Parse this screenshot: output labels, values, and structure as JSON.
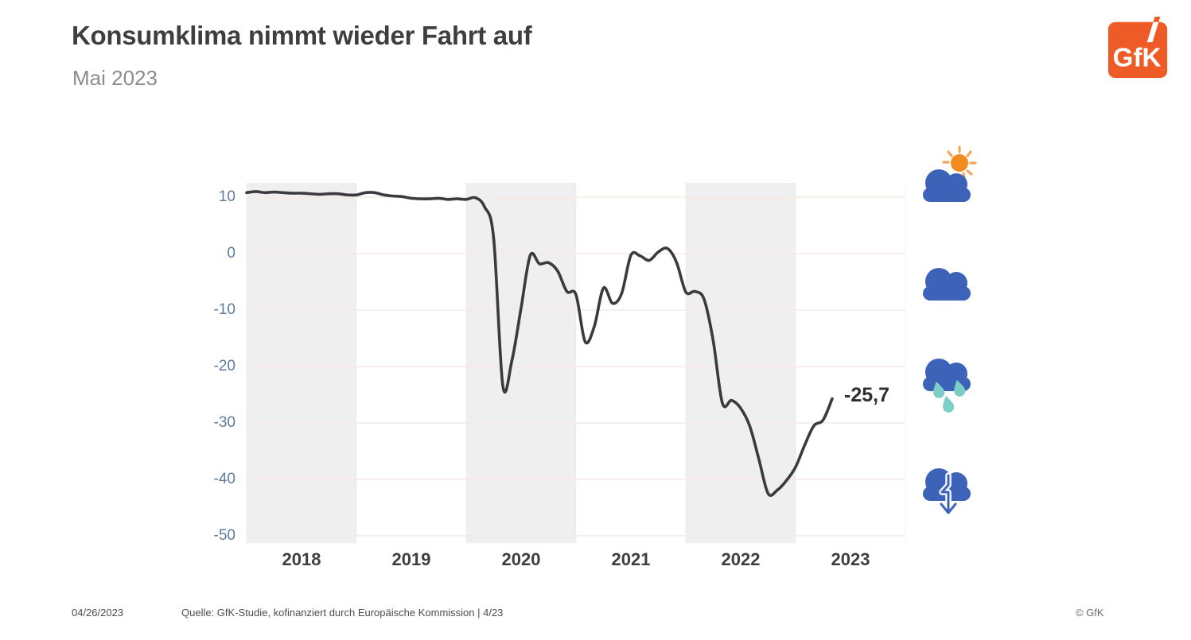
{
  "header": {
    "title": "Konsumklima nimmt wieder Fahrt auf",
    "subtitle": "Mai 2023"
  },
  "logo": {
    "text": "GfK",
    "color": "#ee5b27"
  },
  "colors": {
    "brand_orange": "#ee5b27",
    "icon_blue": "#3d63b8",
    "sun_orange": "#f28a1e",
    "drop_teal": "#7ccfc9",
    "axis_label_blue": "#5e7b9e",
    "band_gray": "#efefef",
    "grid_pink": "#f6e9e3",
    "line_dark": "#3b3b3d"
  },
  "icons": [
    {
      "name": "sun-behind-cloud-icon",
      "meaning": "very good climate"
    },
    {
      "name": "cloud-icon",
      "meaning": "cloudy climate"
    },
    {
      "name": "rain-cloud-icon",
      "meaning": "rainy climate"
    },
    {
      "name": "cloud-down-arrow-icon",
      "meaning": "falling climate"
    }
  ],
  "chart_data": {
    "type": "line",
    "title": "GfK Konsumklima Index",
    "x": [
      "2018-01",
      "2018-02",
      "2018-03",
      "2018-04",
      "2018-05",
      "2018-06",
      "2018-07",
      "2018-08",
      "2018-09",
      "2018-10",
      "2018-11",
      "2018-12",
      "2019-01",
      "2019-02",
      "2019-03",
      "2019-04",
      "2019-05",
      "2019-06",
      "2019-07",
      "2019-08",
      "2019-09",
      "2019-10",
      "2019-11",
      "2019-12",
      "2020-01",
      "2020-02",
      "2020-03",
      "2020-04",
      "2020-05",
      "2020-06",
      "2020-07",
      "2020-08",
      "2020-09",
      "2020-10",
      "2020-11",
      "2020-12",
      "2021-01",
      "2021-02",
      "2021-03",
      "2021-04",
      "2021-05",
      "2021-06",
      "2021-07",
      "2021-08",
      "2021-09",
      "2021-10",
      "2021-11",
      "2021-12",
      "2022-01",
      "2022-02",
      "2022-03",
      "2022-04",
      "2022-05",
      "2022-06",
      "2022-07",
      "2022-08",
      "2022-09",
      "2022-10",
      "2022-11",
      "2022-12",
      "2023-01",
      "2023-02",
      "2023-03",
      "2023-04",
      "2023-05"
    ],
    "values": [
      10.8,
      11.0,
      10.8,
      10.9,
      10.8,
      10.7,
      10.7,
      10.6,
      10.5,
      10.6,
      10.6,
      10.4,
      10.4,
      10.8,
      10.8,
      10.4,
      10.2,
      10.1,
      9.8,
      9.7,
      9.7,
      9.8,
      9.6,
      9.7,
      9.6,
      9.9,
      8.3,
      2.7,
      -23.4,
      -18.9,
      -9.6,
      -0.3,
      -1.8,
      -1.6,
      -3.1,
      -6.7,
      -7.3,
      -15.6,
      -12.9,
      -6.1,
      -8.8,
      -7.0,
      -0.3,
      -0.4,
      -1.2,
      0.3,
      0.9,
      -1.6,
      -6.8,
      -6.7,
      -8.1,
      -15.5,
      -26.5,
      -26.0,
      -27.4,
      -30.6,
      -36.5,
      -42.5,
      -41.9,
      -40.2,
      -37.8,
      -33.9,
      -30.5,
      -29.5,
      -25.7
    ],
    "yticks": [
      10,
      0,
      -10,
      -20,
      -30,
      -40,
      -50
    ],
    "xticks": [
      "2018",
      "2019",
      "2020",
      "2021",
      "2022",
      "2023"
    ],
    "ylim": [
      -51.3,
      12.5
    ],
    "x_domain_years": [
      2018,
      2024
    ],
    "shaded_year_indices": [
      0,
      2,
      4
    ],
    "grid": "horizontal",
    "legend": "none",
    "end_label": "-25,7",
    "end_value": -25.7
  },
  "footer": {
    "date": "04/26/2023",
    "source": "Quelle: GfK-Studie, kofinanziert durch Europäische Kommission | 4/23",
    "copyright": "© GfK"
  }
}
